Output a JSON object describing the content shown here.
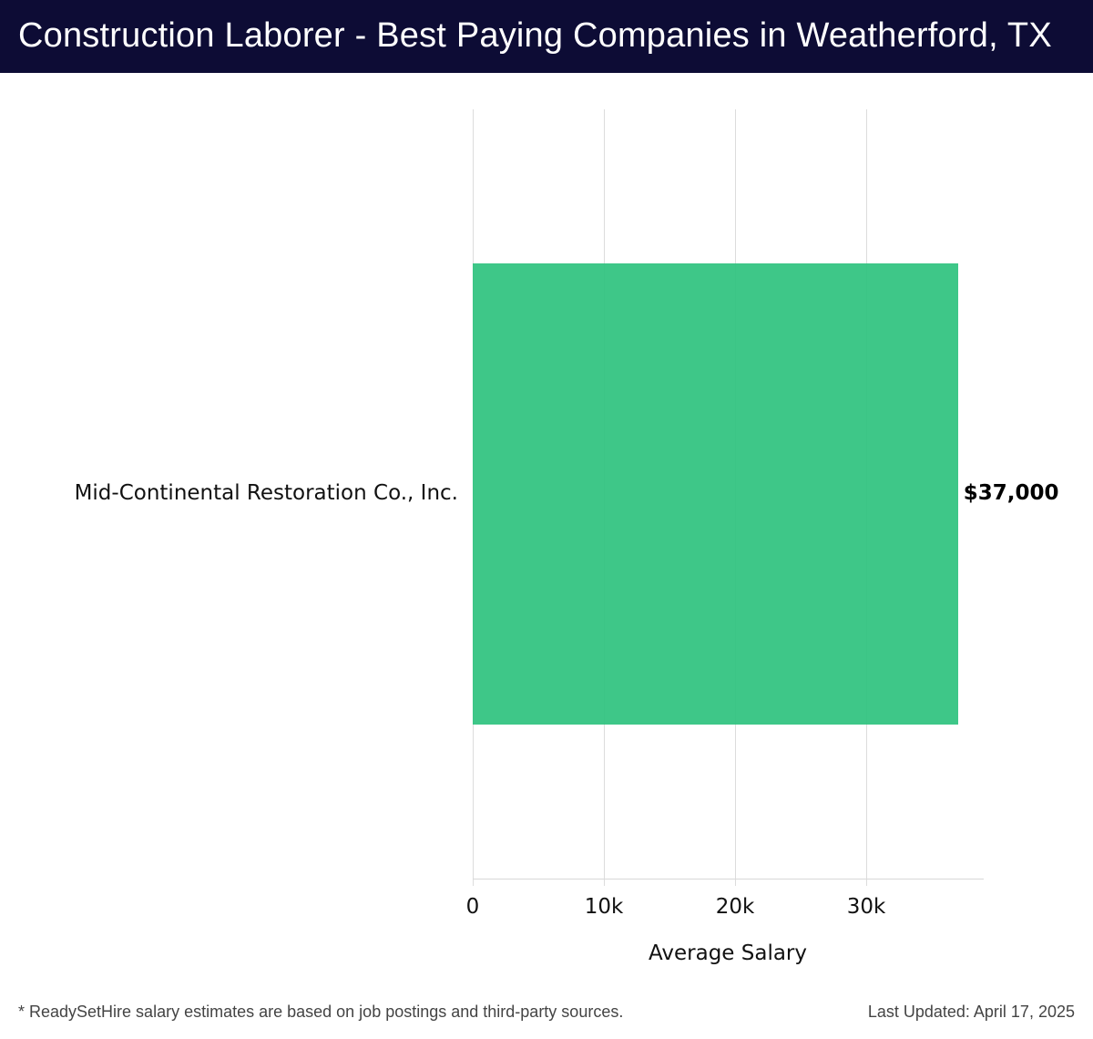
{
  "header": {
    "title": "Construction Laborer - Best Paying Companies in Weatherford, TX"
  },
  "colors": {
    "title_bg": "#0d0c35",
    "bar": "#2ec27e",
    "grid": "#dcdcdc"
  },
  "chart_data": {
    "type": "bar",
    "orientation": "horizontal",
    "title": "Construction Laborer - Best Paying Companies in Weatherford, TX",
    "categories": [
      "Mid-Continental Restoration Co., Inc."
    ],
    "values": [
      37000
    ],
    "value_labels": [
      "$37,000"
    ],
    "xlabel": "Average Salary",
    "ylabel": "",
    "xticks": [
      "0",
      "10k",
      "20k",
      "30k"
    ],
    "xtick_values": [
      0,
      10000,
      20000,
      30000
    ],
    "xlim": [
      0,
      39000
    ],
    "grid": true,
    "legend": null
  },
  "footer": {
    "note": "* ReadySetHire salary estimates are based on job postings and third-party sources.",
    "updated": "Last Updated: April 17, 2025"
  }
}
